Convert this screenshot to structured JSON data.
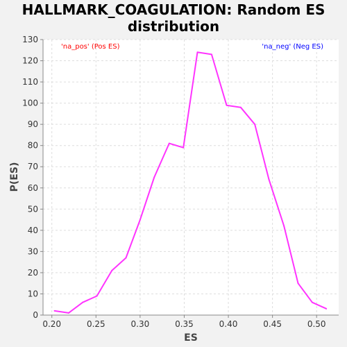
{
  "chart_data": {
    "type": "line",
    "title_line1": "HALLMARK_COAGULATION: Random ES",
    "title_line2": "distribution",
    "xlabel": "ES",
    "ylabel": "P(ES)",
    "xlim": [
      0.19,
      0.525
    ],
    "ylim": [
      0,
      130
    ],
    "x_ticks": [
      "0.20",
      "0.25",
      "0.30",
      "0.35",
      "0.40",
      "0.45",
      "0.50"
    ],
    "y_ticks": [
      "0",
      "10",
      "20",
      "30",
      "40",
      "50",
      "60",
      "70",
      "80",
      "90",
      "100",
      "110",
      "120",
      "130"
    ],
    "grid": true,
    "annotations": {
      "pos": "'na_pos' (Pos ES)",
      "neg": "'na_neg' (Neg ES)"
    },
    "colors": {
      "line": "#ff33ff",
      "pos": "#ff0000",
      "neg": "#0000ff",
      "grid": "#dddddd"
    },
    "series": [
      {
        "x": [
          0.203,
          0.219,
          0.235,
          0.251,
          0.268,
          0.284,
          0.3,
          0.316,
          0.333,
          0.349,
          0.365,
          0.381,
          0.398,
          0.414,
          0.43,
          0.446,
          0.463,
          0.479,
          0.495,
          0.511
        ],
        "values": [
          2,
          1,
          6,
          9,
          21,
          27,
          45,
          65,
          81,
          79,
          124,
          123,
          99,
          98,
          90,
          64,
          42,
          15,
          6,
          3
        ]
      }
    ]
  }
}
